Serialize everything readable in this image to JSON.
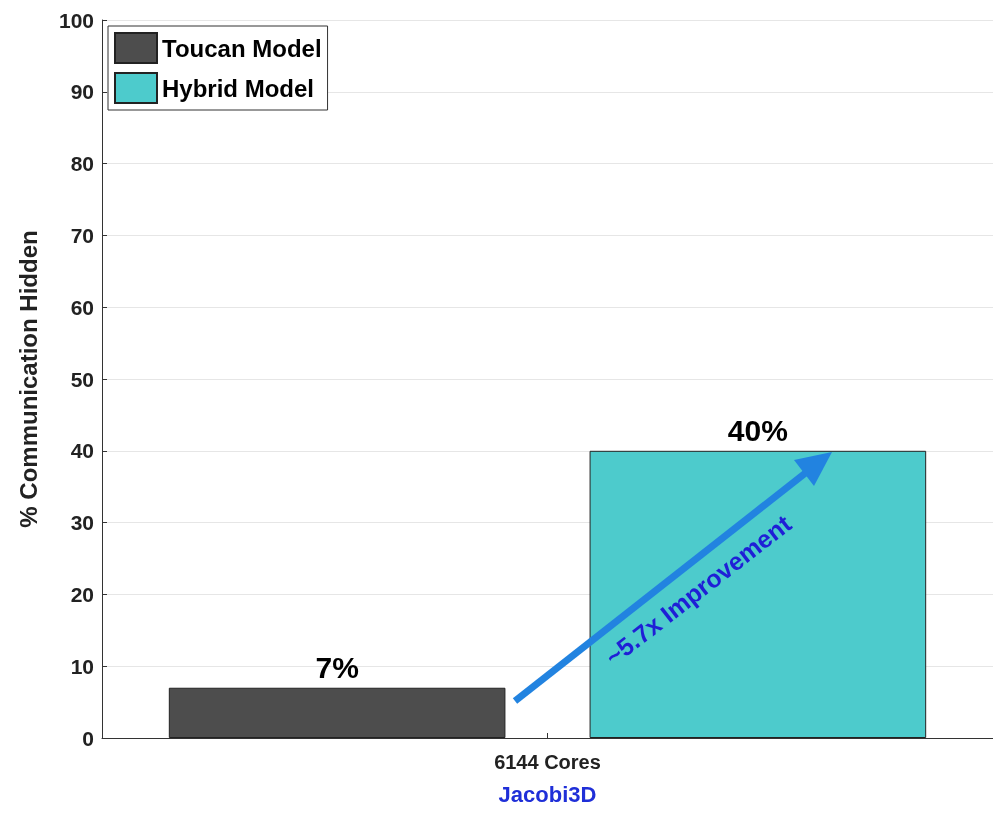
{
  "chart_data": {
    "type": "bar",
    "categories": [
      "6144 Cores"
    ],
    "series": [
      {
        "name": "Toucan Model",
        "color": "#4d4d4d",
        "values": [
          7
        ],
        "value_labels": [
          "7%"
        ]
      },
      {
        "name": "Hybrid Model",
        "color": "#4dcbcc",
        "values": [
          40
        ],
        "value_labels": [
          "40%"
        ]
      }
    ],
    "xlabel": "Jacobi3D",
    "ylabel": "% Communication Hidden",
    "ylim": [
      0,
      100
    ],
    "yticks": [
      0,
      10,
      20,
      30,
      40,
      50,
      60,
      70,
      80,
      90,
      100
    ],
    "grid": "y",
    "legend": "top left",
    "annotations": [
      "~5.7x Improvement"
    ]
  }
}
